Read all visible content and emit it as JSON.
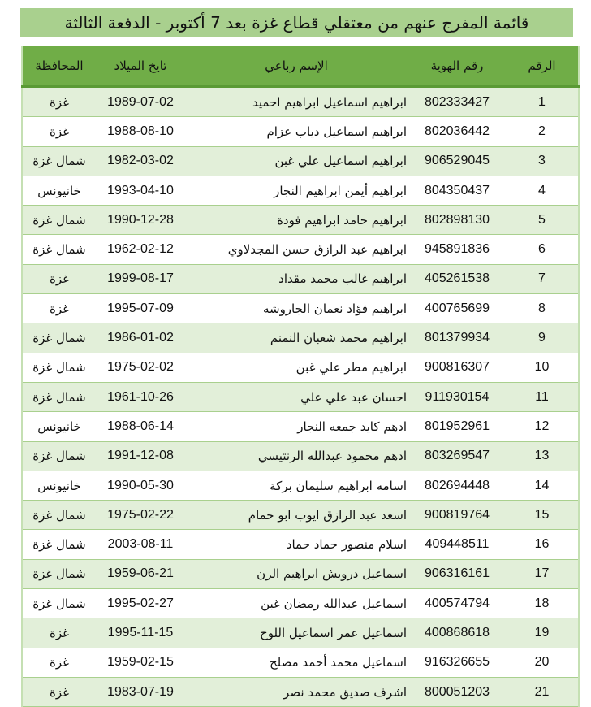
{
  "title": "قائمة المفرج عنهم من معتقلي قطاع غزة بعد 7 أكتوبر - الدفعة الثالثة",
  "colors": {
    "title_bg": "#a9d08e",
    "header_bg": "#70ad47",
    "row_alt_bg": "#e2efd9"
  },
  "columns": [
    "الرقم",
    "رقم الهوية",
    "الإسم رباعي",
    "تايخ الميلاد",
    "المحافظة"
  ],
  "rows": [
    {
      "num": "1",
      "id": "802333427",
      "name": "ابراهيم اسماعيل ابراهيم احميد",
      "dob": "1989-07-02",
      "gov": "غزة"
    },
    {
      "num": "2",
      "id": "802036442",
      "name": "ابراهيم اسماعيل دياب عزام",
      "dob": "1988-08-10",
      "gov": "غزة"
    },
    {
      "num": "3",
      "id": "906529045",
      "name": "ابراهيم اسماعيل علي غبن",
      "dob": "1982-03-02",
      "gov": "شمال غزة"
    },
    {
      "num": "4",
      "id": "804350437",
      "name": "ابراهيم أيمن ابراهيم النجار",
      "dob": "1993-04-10",
      "gov": "خانيونس"
    },
    {
      "num": "5",
      "id": "802898130",
      "name": "ابراهيم حامد ابراهيم فودة",
      "dob": "1990-12-28",
      "gov": "شمال غزة"
    },
    {
      "num": "6",
      "id": "945891836",
      "name": "ابراهيم عبد الرازق حسن المجدلاوي",
      "dob": "1962-02-12",
      "gov": "شمال غزة"
    },
    {
      "num": "7",
      "id": "405261538",
      "name": "ابراهيم غالب محمد مقداد",
      "dob": "1999-08-17",
      "gov": "غزة"
    },
    {
      "num": "8",
      "id": "400765699",
      "name": "ابراهيم فؤاد نعمان الجاروشه",
      "dob": "1995-07-09",
      "gov": "غزة"
    },
    {
      "num": "9",
      "id": "801379934",
      "name": "ابراهيم محمد شعبان النمنم",
      "dob": "1986-01-02",
      "gov": "شمال غزة"
    },
    {
      "num": "10",
      "id": "900816307",
      "name": "ابراهيم مطر علي غبن",
      "dob": "1975-02-02",
      "gov": "شمال غزة"
    },
    {
      "num": "11",
      "id": "911930154",
      "name": "احسان عبد علي علي",
      "dob": "1961-10-26",
      "gov": "شمال غزة"
    },
    {
      "num": "12",
      "id": "801952961",
      "name": "ادهم كايد جمعه النجار",
      "dob": "1988-06-14",
      "gov": "خانيونس"
    },
    {
      "num": "13",
      "id": "803269547",
      "name": "ادهم محمود عبدالله الرنتيسي",
      "dob": "1991-12-08",
      "gov": "شمال غزة"
    },
    {
      "num": "14",
      "id": "802694448",
      "name": "اسامه ابراهيم سليمان بركة",
      "dob": "1990-05-30",
      "gov": "خانيونس"
    },
    {
      "num": "15",
      "id": "900819764",
      "name": "اسعد عبد الرازق ايوب ابو حمام",
      "dob": "1975-02-22",
      "gov": "شمال غزة"
    },
    {
      "num": "16",
      "id": "409448511",
      "name": "اسلام منصور حماد حماد",
      "dob": "2003-08-11",
      "gov": "شمال غزة"
    },
    {
      "num": "17",
      "id": "906316161",
      "name": "اسماعيل درويش ابراهيم الرن",
      "dob": "1959-06-21",
      "gov": "شمال غزة"
    },
    {
      "num": "18",
      "id": "400574794",
      "name": "اسماعيل عبدالله رمضان غبن",
      "dob": "1995-02-27",
      "gov": "شمال غزة"
    },
    {
      "num": "19",
      "id": "400868618",
      "name": "اسماعيل عمر اسماعيل اللوح",
      "dob": "1995-11-15",
      "gov": "غزة"
    },
    {
      "num": "20",
      "id": "916326655",
      "name": "اسماعيل محمد أحمد مصلح",
      "dob": "1959-02-15",
      "gov": "غزة"
    },
    {
      "num": "21",
      "id": "800051203",
      "name": "اشرف صديق محمد نصر",
      "dob": "1983-07-19",
      "gov": "غزة"
    }
  ]
}
